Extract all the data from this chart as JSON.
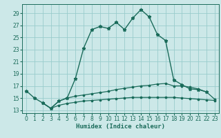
{
  "xlabel": "Humidex (Indice chaleur)",
  "xlim": [
    -0.5,
    23.5
  ],
  "ylim": [
    12.5,
    30.5
  ],
  "yticks": [
    13,
    15,
    17,
    19,
    21,
    23,
    25,
    27,
    29
  ],
  "xticks": [
    0,
    1,
    2,
    3,
    4,
    5,
    6,
    7,
    8,
    9,
    10,
    11,
    12,
    13,
    14,
    15,
    16,
    17,
    18,
    19,
    20,
    21,
    22,
    23
  ],
  "bg_color": "#cce8e8",
  "grid_color": "#99cccc",
  "line_color": "#1a6b5a",
  "line1_x": [
    0,
    1,
    2,
    3,
    4,
    5,
    6,
    7,
    8,
    9,
    10,
    11,
    12,
    13,
    14,
    15,
    16,
    17,
    18,
    19,
    20,
    21,
    22
  ],
  "line1_y": [
    16.2,
    15.0,
    14.2,
    13.3,
    14.5,
    15.0,
    18.2,
    23.2,
    26.3,
    26.8,
    26.5,
    27.5,
    26.3,
    28.2,
    29.6,
    28.4,
    25.5,
    24.5,
    18.0,
    17.2,
    16.5,
    16.4,
    16.0
  ],
  "line2_x": [
    2,
    3,
    4,
    5,
    6,
    7,
    8,
    9,
    10,
    11,
    12,
    13,
    14,
    15,
    16,
    17,
    18,
    19,
    20,
    21,
    22,
    23
  ],
  "line2_y": [
    14.2,
    13.3,
    14.5,
    15.0,
    15.3,
    15.5,
    15.7,
    15.9,
    16.1,
    16.4,
    16.6,
    16.8,
    17.0,
    17.1,
    17.3,
    17.4,
    17.0,
    17.0,
    16.8,
    16.5,
    16.0,
    14.8
  ],
  "line3_x": [
    2,
    3,
    4,
    5,
    6,
    7,
    8,
    9,
    10,
    11,
    12,
    13,
    14,
    15,
    16,
    17,
    18,
    19,
    20,
    21,
    22,
    23
  ],
  "line3_y": [
    14.2,
    13.3,
    13.8,
    14.1,
    14.3,
    14.5,
    14.6,
    14.7,
    14.8,
    14.9,
    15.0,
    15.1,
    15.1,
    15.1,
    15.1,
    15.1,
    15.1,
    15.0,
    14.9,
    14.8,
    14.7,
    14.6
  ]
}
